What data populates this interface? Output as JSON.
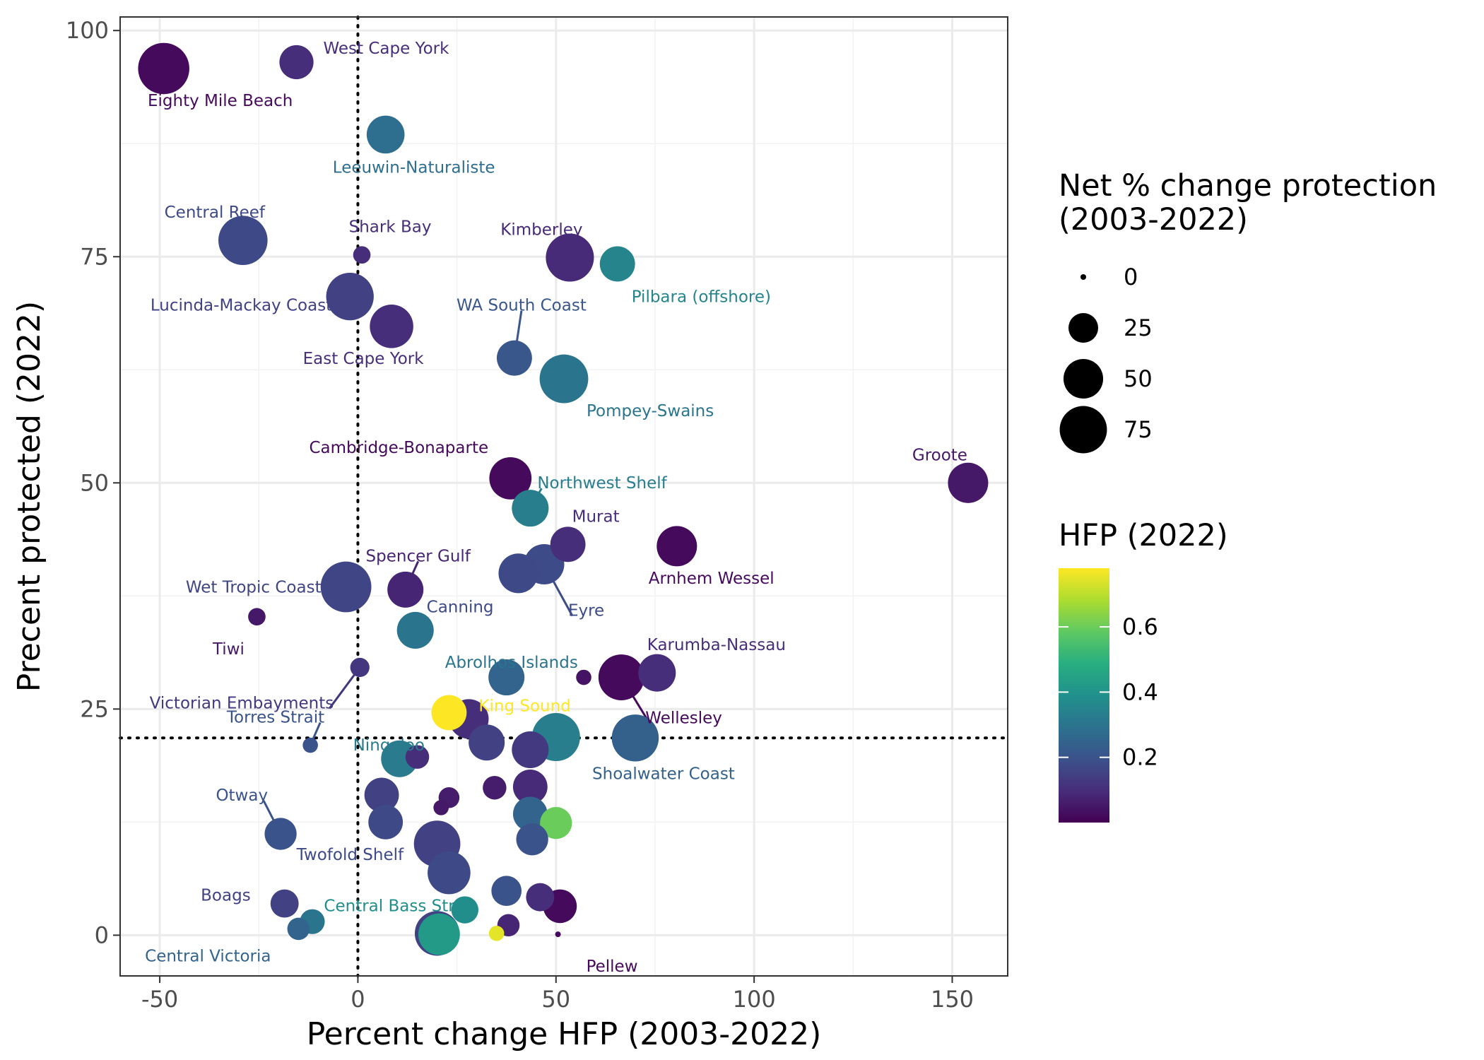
{
  "chart_data": {
    "type": "scatter",
    "xlabel": "Percent change HFP (2003-2022)",
    "ylabel": "Precent protected (2022)",
    "xlim": [
      -60,
      164
    ],
    "ylim": [
      -4.5,
      101.5
    ],
    "x_ticks": [
      -50,
      0,
      50,
      100,
      150
    ],
    "x_tick_labels": [
      "-50",
      "0",
      "50",
      "100",
      "150"
    ],
    "y_ticks": [
      0,
      25,
      50,
      75,
      100
    ],
    "y_tick_labels": [
      "0",
      "25",
      "50",
      "75",
      "100"
    ],
    "grid": true,
    "reference_lines": {
      "x": 0,
      "y": 21.8,
      "style": "dotted"
    },
    "size_legend": {
      "title_lines": [
        "Net % change protection",
        "(2003-2022)"
      ],
      "entries": [
        {
          "label": "0",
          "value": 0
        },
        {
          "label": "25",
          "value": 25
        },
        {
          "label": "50",
          "value": 50
        },
        {
          "label": "75",
          "value": 75
        }
      ]
    },
    "color_legend": {
      "title": "HFP (2022)",
      "range": [
        0.0,
        0.78
      ],
      "ticks": [
        0.2,
        0.4,
        0.6
      ],
      "tick_labels": [
        "0.2",
        "0.4",
        "0.6"
      ],
      "palette": "viridis"
    },
    "points": [
      {
        "x": -49,
        "y": 95.8,
        "size": 90,
        "hfp": 0.02,
        "label": "Eighty Mile Beach"
      },
      {
        "x": -15.5,
        "y": 96.5,
        "size": 35,
        "hfp": 0.1,
        "label": "West Cape York"
      },
      {
        "x": 7,
        "y": 88.5,
        "size": 45,
        "hfp": 0.28,
        "label": "Leeuwin-Naturaliste"
      },
      {
        "x": -29,
        "y": 76.8,
        "size": 82,
        "hfp": 0.17,
        "label": "Central Reef"
      },
      {
        "x": 1,
        "y": 75.2,
        "size": 6,
        "hfp": 0.1,
        "label": "Shark Bay"
      },
      {
        "x": 53.5,
        "y": 74.9,
        "size": 78,
        "hfp": 0.09,
        "label": "Kimberley"
      },
      {
        "x": 65.5,
        "y": 74.2,
        "size": 38,
        "hfp": 0.35,
        "label": "Pilbara (offshore)"
      },
      {
        "x": -2,
        "y": 70.6,
        "size": 76,
        "hfp": 0.15,
        "label": "Lucinda-Mackay Coast"
      },
      {
        "x": 8.5,
        "y": 67.3,
        "size": 62,
        "hfp": 0.1,
        "label": "East Cape York"
      },
      {
        "x": 39.5,
        "y": 63.8,
        "size": 38,
        "hfp": 0.21,
        "label": "WA South Coast"
      },
      {
        "x": 52,
        "y": 61.5,
        "size": 80,
        "hfp": 0.3,
        "label": "Pompey-Swains"
      },
      {
        "x": 154,
        "y": 50,
        "size": 52,
        "hfp": 0.05,
        "label": "Groote"
      },
      {
        "x": 38.5,
        "y": 50.5,
        "size": 58,
        "hfp": 0.02,
        "label": "Cambridge-Bonaparte"
      },
      {
        "x": 43.5,
        "y": 47.2,
        "size": 42,
        "hfp": 0.33,
        "label": "Northwest Shelf"
      },
      {
        "x": 53,
        "y": 43.2,
        "size": 38,
        "hfp": 0.1,
        "label": "Murat"
      },
      {
        "x": 80.5,
        "y": 43,
        "size": 52,
        "hfp": 0.02,
        "label": "Arnhem Wessel"
      },
      {
        "x": 47,
        "y": 41,
        "size": 52,
        "hfp": 0.18,
        "label": "Eyre"
      },
      {
        "x": 40.5,
        "y": 40,
        "size": 50,
        "hfp": 0.17,
        "label": "Canning"
      },
      {
        "x": 12,
        "y": 38.2,
        "size": 40,
        "hfp": 0.08,
        "label": "Spencer Gulf"
      },
      {
        "x": -3,
        "y": 38.5,
        "size": 88,
        "hfp": 0.16,
        "label": "Wet Tropic Coast"
      },
      {
        "x": -25.5,
        "y": 35.2,
        "size": 6,
        "hfp": 0.05,
        "label": "Tiwi"
      },
      {
        "x": 14.5,
        "y": 33.7,
        "size": 42,
        "hfp": 0.3,
        "label": "Abrolhos Islands"
      },
      {
        "x": 0.5,
        "y": 29.6,
        "size": 8,
        "hfp": 0.12,
        "label": "Victorian Embayments"
      },
      {
        "x": 66.5,
        "y": 28.5,
        "size": 70,
        "hfp": 0.02,
        "label": "Wellesley"
      },
      {
        "x": 75.5,
        "y": 29,
        "size": 44,
        "hfp": 0.1,
        "label": "Karumba-Nassau"
      },
      {
        "x": 57,
        "y": 28.5,
        "size": 4,
        "hfp": 0.04,
        "label": ""
      },
      {
        "x": 37.5,
        "y": 28.5,
        "size": 40,
        "hfp": 0.25,
        "label": ""
      },
      {
        "x": 23,
        "y": 24.6,
        "size": 38,
        "hfp": 0.78,
        "label": "King Sound"
      },
      {
        "x": 28,
        "y": 23.9,
        "size": 50,
        "hfp": 0.1,
        "label": ""
      },
      {
        "x": 50,
        "y": 21.9,
        "size": 78,
        "hfp": 0.33,
        "label": ""
      },
      {
        "x": 70,
        "y": 21.8,
        "size": 74,
        "hfp": 0.24,
        "label": "Shoalwater Coast"
      },
      {
        "x": 32.5,
        "y": 21.3,
        "size": 40,
        "hfp": 0.15,
        "label": ""
      },
      {
        "x": 43.5,
        "y": 20.5,
        "size": 42,
        "hfp": 0.13,
        "label": ""
      },
      {
        "x": 10.5,
        "y": 19.5,
        "size": 42,
        "hfp": 0.32,
        "label": "Ningaloo"
      },
      {
        "x": 15,
        "y": 19.7,
        "size": 14,
        "hfp": 0.1,
        "label": ""
      },
      {
        "x": -12,
        "y": 21,
        "size": 4,
        "hfp": 0.2,
        "label": "Torres Strait"
      },
      {
        "x": 6,
        "y": 15.5,
        "size": 36,
        "hfp": 0.15,
        "label": ""
      },
      {
        "x": 23,
        "y": 15.2,
        "size": 10,
        "hfp": 0.06,
        "label": ""
      },
      {
        "x": 34.5,
        "y": 16.3,
        "size": 14,
        "hfp": 0.06,
        "label": ""
      },
      {
        "x": 43.5,
        "y": 16.4,
        "size": 36,
        "hfp": 0.09,
        "label": ""
      },
      {
        "x": 21,
        "y": 14.1,
        "size": 4,
        "hfp": 0.05,
        "label": ""
      },
      {
        "x": 43.5,
        "y": 13.4,
        "size": 36,
        "hfp": 0.25,
        "label": ""
      },
      {
        "x": 50,
        "y": 12.4,
        "size": 30,
        "hfp": 0.6,
        "label": ""
      },
      {
        "x": 7,
        "y": 12.5,
        "size": 36,
        "hfp": 0.17,
        "label": ""
      },
      {
        "x": -19.5,
        "y": 11.2,
        "size": 30,
        "hfp": 0.2,
        "label": "Otway"
      },
      {
        "x": 20,
        "y": 10.1,
        "size": 72,
        "hfp": 0.15,
        "label": ""
      },
      {
        "x": 44,
        "y": 10.6,
        "size": 30,
        "hfp": 0.2,
        "label": ""
      },
      {
        "x": 23,
        "y": 6.9,
        "size": 60,
        "hfp": 0.17,
        "label": "Twofold Shelf"
      },
      {
        "x": 37.5,
        "y": 4.9,
        "size": 26,
        "hfp": 0.2,
        "label": ""
      },
      {
        "x": 46,
        "y": 4.2,
        "size": 22,
        "hfp": 0.1,
        "label": ""
      },
      {
        "x": 51,
        "y": 3.2,
        "size": 34,
        "hfp": 0.02,
        "label": ""
      },
      {
        "x": -18.5,
        "y": 3.5,
        "size": 22,
        "hfp": 0.15,
        "label": "Boags"
      },
      {
        "x": 27,
        "y": 2.8,
        "size": 20,
        "hfp": 0.38,
        "label": "Central Bass Strait"
      },
      {
        "x": -11.5,
        "y": 1.5,
        "size": 16,
        "hfp": 0.3,
        "label": ""
      },
      {
        "x": -15,
        "y": 0.7,
        "size": 12,
        "hfp": 0.25,
        "label": "Central Victoria"
      },
      {
        "x": 38,
        "y": 1.1,
        "size": 12,
        "hfp": 0.08,
        "label": ""
      },
      {
        "x": 20,
        "y": 0.2,
        "size": 66,
        "hfp": 0.15,
        "label": ""
      },
      {
        "x": 20.5,
        "y": 0.1,
        "size": 56,
        "hfp": 0.42,
        "label": ""
      },
      {
        "x": 35,
        "y": 0.2,
        "size": 4,
        "hfp": 0.75,
        "label": ""
      },
      {
        "x": 50.5,
        "y": 0.1,
        "size": 0,
        "hfp": 0.02,
        "label": "Pellew"
      }
    ]
  }
}
